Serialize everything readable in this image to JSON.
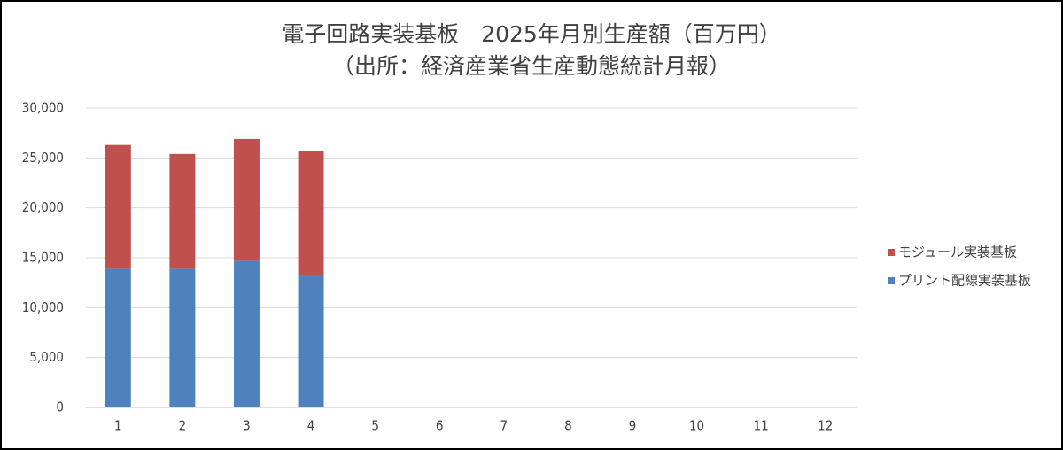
{
  "chart_data": {
    "type": "stacked_bar",
    "title": "電子回路実装基板　2025年月別生産額（百万円）",
    "subtitle": "（出所：経済産業省生産動態統計月報）",
    "categories": [
      "1",
      "2",
      "3",
      "4",
      "5",
      "6",
      "7",
      "8",
      "9",
      "10",
      "11",
      "12"
    ],
    "series": [
      {
        "name": "プリント配線実装基板",
        "color": "#4f81bd",
        "values": [
          13900,
          13900,
          14700,
          13300,
          null,
          null,
          null,
          null,
          null,
          null,
          null,
          null
        ]
      },
      {
        "name": "モジュール実装基板",
        "color": "#c0504d",
        "values": [
          12400,
          11500,
          12200,
          12400,
          null,
          null,
          null,
          null,
          null,
          null,
          null,
          null
        ]
      }
    ],
    "ylim": [
      0,
      30000
    ],
    "yticks": [
      0,
      {
        "value": 5000,
        "label": "5,000"
      },
      {
        "value": 10000,
        "label": "10,000"
      },
      {
        "value": 15000,
        "label": "15,000"
      },
      {
        "value": 20000,
        "label": "20,000"
      },
      {
        "value": 25000,
        "label": "25,000"
      },
      {
        "value": 30000,
        "label": "30,000"
      }
    ],
    "grid": true,
    "legend": "right"
  }
}
